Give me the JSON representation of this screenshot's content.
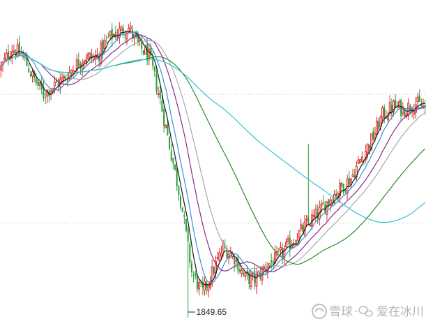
{
  "chart_data": {
    "type": "candlestick",
    "title": "",
    "xlabel": "",
    "ylabel": "",
    "ylim": [
      1800,
      3700
    ],
    "grid": "horizontal-dotted",
    "annotations": [
      {
        "text": "1849.65",
        "marks": "lowest-low"
      }
    ],
    "colors": {
      "up": "#e02626",
      "down": "#2a9d3a",
      "ma5": "#1a1a1a",
      "ma10": "#3a8fd8",
      "ma20": "#8a2a8a",
      "ma30": "#a8a8a8",
      "ma60": "#2a8a2a",
      "ma120": "#33c3d8",
      "grid": "#bcbcbc"
    },
    "moving_averages": [
      "ma5",
      "ma10",
      "ma20",
      "ma30",
      "ma60",
      "ma120"
    ],
    "series_close_approx": [
      3300,
      3420,
      3380,
      3250,
      3150,
      3200,
      3240,
      3320,
      3370,
      3360,
      3470,
      3510,
      3540,
      3430,
      3370,
      3120,
      2820,
      2520,
      2110,
      1990,
      2120,
      2260,
      2200,
      2080,
      2070,
      2150,
      2190,
      2260,
      2330,
      2400,
      2460,
      2540,
      2600,
      2660,
      2780,
      2890,
      3030,
      3080,
      3060,
      3100,
      3070
    ]
  },
  "annotation_label": "1849.65",
  "watermark": {
    "logo_text": "雪球",
    "separator": "·",
    "author": "爱在冰川"
  }
}
